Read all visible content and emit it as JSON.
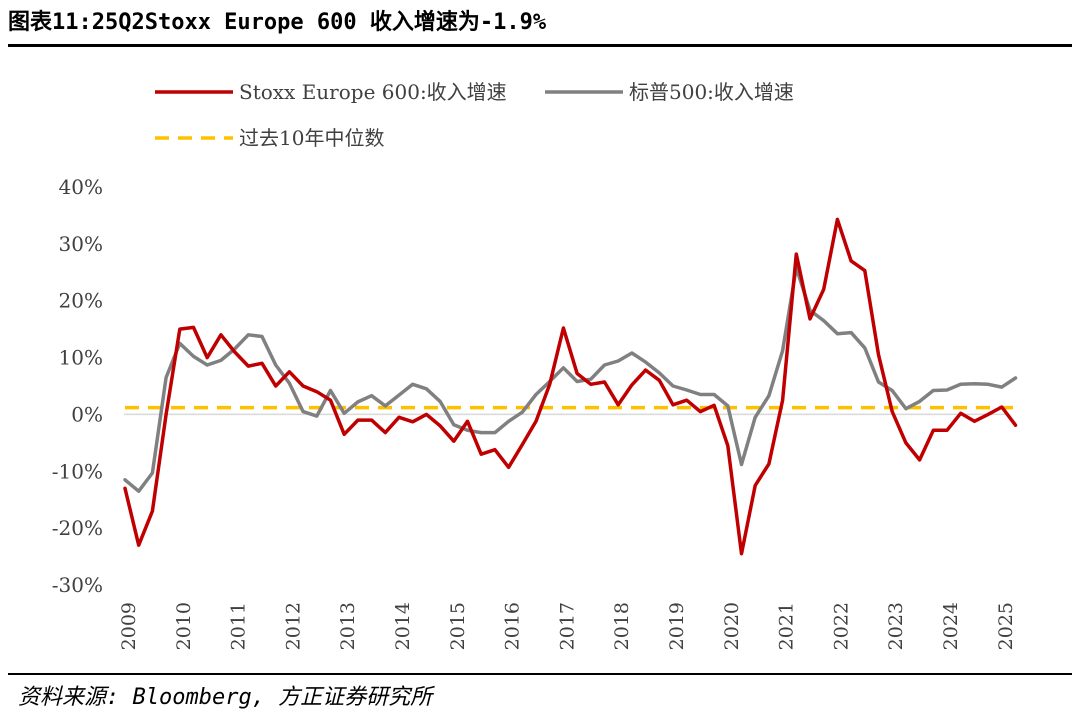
{
  "title": "图表11:25Q2Stoxx Europe 600 收入增速为-1.9%",
  "source": "资料来源: Bloomberg, 方正证券研究所",
  "chart_data": {
    "type": "line",
    "title": "图表11:25Q2Stoxx Europe 600 收入增速为-1.9%",
    "xlabel": "",
    "ylabel": "",
    "ylim": [
      -30,
      40
    ],
    "yticks": [
      "-30%",
      "-20%",
      "-10%",
      "0%",
      "10%",
      "20%",
      "30%",
      "40%"
    ],
    "x_ticks": [
      "2009",
      "2010",
      "2011",
      "2012",
      "2013",
      "2014",
      "2015",
      "2016",
      "2017",
      "2018",
      "2019",
      "2020",
      "2021",
      "2022",
      "2023",
      "2024",
      "2025"
    ],
    "legend_position": "top",
    "grid": false,
    "x": [
      "2009Q1",
      "2009Q2",
      "2009Q3",
      "2009Q4",
      "2010Q1",
      "2010Q2",
      "2010Q3",
      "2010Q4",
      "2011Q1",
      "2011Q2",
      "2011Q3",
      "2011Q4",
      "2012Q1",
      "2012Q2",
      "2012Q3",
      "2012Q4",
      "2013Q1",
      "2013Q2",
      "2013Q3",
      "2013Q4",
      "2014Q1",
      "2014Q2",
      "2014Q3",
      "2014Q4",
      "2015Q1",
      "2015Q2",
      "2015Q3",
      "2015Q4",
      "2016Q1",
      "2016Q2",
      "2016Q3",
      "2016Q4",
      "2017Q1",
      "2017Q2",
      "2017Q3",
      "2017Q4",
      "2018Q1",
      "2018Q2",
      "2018Q3",
      "2018Q4",
      "2019Q1",
      "2019Q2",
      "2019Q3",
      "2019Q4",
      "2020Q1",
      "2020Q2",
      "2020Q3",
      "2020Q4",
      "2021Q1",
      "2021Q2",
      "2021Q3",
      "2021Q4",
      "2022Q1",
      "2022Q2",
      "2022Q3",
      "2022Q4",
      "2023Q1",
      "2023Q2",
      "2023Q3",
      "2023Q4",
      "2024Q1",
      "2024Q2",
      "2024Q3",
      "2024Q4",
      "2025Q1",
      "2025Q2"
    ],
    "series": [
      {
        "name": "Stoxx Europe 600:收入增速",
        "color": "#C00000",
        "values": [
          -13,
          -23,
          -17,
          0,
          15,
          15.3,
          10,
          14,
          11,
          8.5,
          9,
          5,
          7.5,
          5,
          4,
          2.5,
          -3.5,
          -1,
          -1,
          -3.2,
          -0.5,
          -1.3,
          0,
          -2,
          -4.7,
          -1.2,
          -7,
          -6.2,
          -9.3,
          -5.3,
          -1.2,
          5.3,
          15.2,
          7.2,
          5.3,
          5.7,
          1.7,
          5.2,
          7.8,
          6,
          1.7,
          2.5,
          0.5,
          1.6,
          -5.5,
          -24.5,
          -12.5,
          -8.7,
          2.5,
          28.2,
          16.8,
          22,
          34.3,
          27,
          25.3,
          10.5,
          0.5,
          -5,
          -8,
          -2.8,
          -2.8,
          0.2,
          -1.2,
          0,
          1.3,
          -1.9
        ]
      },
      {
        "name": "标普500:收入增速",
        "color": "#808080",
        "values": [
          -11.5,
          -13.5,
          -10.3,
          6.5,
          12.5,
          10.2,
          8.7,
          9.5,
          11.5,
          14,
          13.7,
          8.7,
          5.5,
          0.5,
          -0.3,
          4.2,
          0.2,
          2.2,
          3.3,
          1.5,
          3.4,
          5.3,
          4.5,
          2.3,
          -1.8,
          -2.8,
          -3.2,
          -3.2,
          -1.2,
          0.4,
          3.5,
          5.8,
          8.2,
          5.8,
          6.2,
          8.7,
          9.4,
          10.8,
          9.2,
          7.3,
          5,
          4.3,
          3.5,
          3.5,
          1.5,
          -8.8,
          -0.5,
          3.3,
          11.2,
          25.8,
          18.3,
          16.5,
          14.2,
          14.4,
          11.7,
          5.7,
          4.2,
          1,
          2.3,
          4.2,
          4.3,
          5.3,
          5.4,
          5.3,
          4.8,
          6.4
        ]
      },
      {
        "name": "过去10年中位数",
        "color": "#FFC000",
        "dashed": true,
        "values": [
          1.2,
          1.2,
          1.2,
          1.2,
          1.2,
          1.2,
          1.2,
          1.2,
          1.2,
          1.2,
          1.2,
          1.2,
          1.2,
          1.2,
          1.2,
          1.2,
          1.2,
          1.2,
          1.2,
          1.2,
          1.2,
          1.2,
          1.2,
          1.2,
          1.2,
          1.2,
          1.2,
          1.2,
          1.2,
          1.2,
          1.2,
          1.2,
          1.2,
          1.2,
          1.2,
          1.2,
          1.2,
          1.2,
          1.2,
          1.2,
          1.2,
          1.2,
          1.2,
          1.2,
          1.2,
          1.2,
          1.2,
          1.2,
          1.2,
          1.2,
          1.2,
          1.2,
          1.2,
          1.2,
          1.2,
          1.2,
          1.2,
          1.2,
          1.2,
          1.2,
          1.2,
          1.2,
          1.2,
          1.2,
          1.2,
          1.2
        ]
      }
    ]
  }
}
